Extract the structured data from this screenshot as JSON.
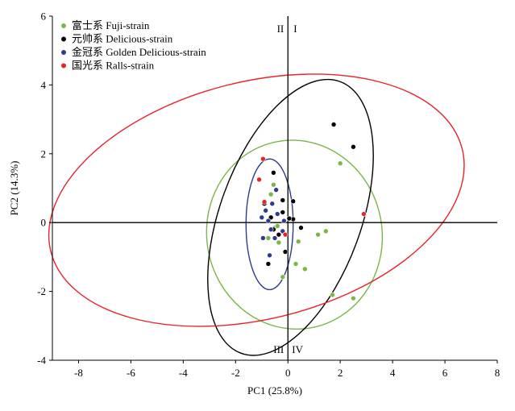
{
  "chart_data": {
    "type": "scatter",
    "xlabel": "PC1 (25.8%)",
    "ylabel": "PC2 (14.3%)",
    "xlim": [
      -9,
      8
    ],
    "ylim": [
      -4,
      6
    ],
    "x_ticks": [
      -8,
      -6,
      -4,
      -2,
      0,
      2,
      4,
      6,
      8
    ],
    "y_ticks": [
      -4,
      -2,
      0,
      2,
      4,
      6
    ],
    "grid": false,
    "legend_position": "top-left",
    "quadrant_labels": {
      "q2": "II",
      "q1": "I",
      "q3": "III",
      "q4": "IV"
    },
    "series": [
      {
        "name": "富士系 Fuji-strain",
        "color": "#7ab648",
        "points": [
          [
            2.0,
            1.72
          ],
          [
            1.45,
            -0.25
          ],
          [
            1.15,
            -0.35
          ],
          [
            0.4,
            -0.55
          ],
          [
            0.3,
            -1.2
          ],
          [
            0.65,
            -1.35
          ],
          [
            -0.2,
            -1.58
          ],
          [
            1.7,
            -2.1
          ],
          [
            2.5,
            -2.2
          ],
          [
            -0.55,
            1.1
          ],
          [
            -0.65,
            0.82
          ],
          [
            -0.5,
            -0.15
          ],
          [
            -0.75,
            -0.45
          ],
          [
            -0.35,
            -0.58
          ],
          [
            -0.4,
            -0.1
          ]
        ],
        "ellipse": {
          "cx": 0.25,
          "cy": -0.35,
          "rx": 3.35,
          "ry": 2.75,
          "rotation_deg": -10
        }
      },
      {
        "name": "元帅系 Delicious-strain",
        "color": "#000000",
        "points": [
          [
            1.75,
            2.85
          ],
          [
            2.5,
            2.2
          ],
          [
            -0.55,
            1.45
          ],
          [
            -0.2,
            0.65
          ],
          [
            0.2,
            0.62
          ],
          [
            -0.9,
            0.55
          ],
          [
            -0.65,
            0.15
          ],
          [
            0.2,
            0.1
          ],
          [
            0.5,
            -0.15
          ],
          [
            -0.1,
            -0.85
          ],
          [
            -0.75,
            -1.2
          ],
          [
            -0.35,
            -0.35
          ],
          [
            -0.2,
            0.3
          ],
          [
            0.05,
            0.12
          ],
          [
            -0.55,
            -0.2
          ]
        ],
        "ellipse": {
          "cx": 0.1,
          "cy": 0.15,
          "rx": 2.7,
          "ry": 4.2,
          "rotation_deg": 20
        }
      },
      {
        "name": "金冠系 Golden Delicious-strain",
        "color": "#2e3b8e",
        "points": [
          [
            -0.45,
            0.95
          ],
          [
            -0.6,
            0.55
          ],
          [
            -0.85,
            0.35
          ],
          [
            -1.0,
            0.15
          ],
          [
            -0.75,
            0.05
          ],
          [
            -0.65,
            -0.2
          ],
          [
            -0.95,
            -0.45
          ],
          [
            -0.5,
            -0.45
          ],
          [
            -0.2,
            -0.25
          ],
          [
            -0.7,
            -0.95
          ],
          [
            -0.4,
            0.25
          ],
          [
            -0.15,
            0.05
          ]
        ],
        "ellipse": {
          "cx": -0.7,
          "cy": -0.05,
          "rx": 0.9,
          "ry": 1.9,
          "rotation_deg": 0
        }
      },
      {
        "name": "国光系 Ralls-strain",
        "color": "#e8232a",
        "points": [
          [
            -0.95,
            1.85
          ],
          [
            -1.1,
            1.25
          ],
          [
            -0.9,
            0.6
          ],
          [
            2.9,
            0.25
          ],
          [
            -0.1,
            -0.35
          ]
        ],
        "ellipse": {
          "cx": -1.2,
          "cy": 0.65,
          "rx": 8.1,
          "ry": 3.45,
          "rotation_deg": -14
        }
      }
    ]
  }
}
